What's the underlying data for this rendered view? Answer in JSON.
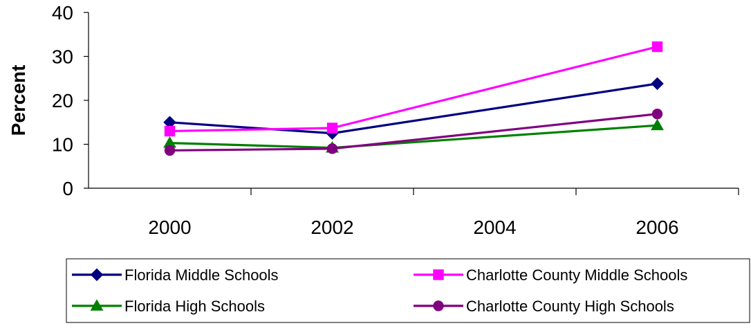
{
  "chart_data": {
    "type": "line",
    "title": "",
    "xlabel": "",
    "ylabel": "Percent",
    "ylim": [
      0,
      40
    ],
    "yticks": [
      0,
      10,
      20,
      30,
      40
    ],
    "xlim": [
      1999,
      2007
    ],
    "x_tick_labels": [
      "2000",
      "2002",
      "2004",
      "2006"
    ],
    "x_tick_values": [
      2000,
      2002,
      2004,
      2006
    ],
    "grid": false,
    "legend_position": "bottom",
    "series": [
      {
        "name": "Florida Middle Schools",
        "color": "#000080",
        "marker": "diamond",
        "x": [
          2000,
          2002,
          2006
        ],
        "values": [
          15.0,
          12.5,
          23.8
        ]
      },
      {
        "name": "Charlotte County Middle Schools",
        "color": "#FF00FF",
        "marker": "square",
        "x": [
          2000,
          2002,
          2006
        ],
        "values": [
          13.0,
          13.7,
          32.2
        ]
      },
      {
        "name": "Florida High Schools",
        "color": "#008000",
        "marker": "triangle",
        "x": [
          2000,
          2002,
          2006
        ],
        "values": [
          10.3,
          9.2,
          14.3
        ]
      },
      {
        "name": "Charlotte County High Schools",
        "color": "#800080",
        "marker": "circle",
        "x": [
          2000,
          2002,
          2006
        ],
        "values": [
          8.6,
          9.0,
          16.9
        ]
      }
    ]
  }
}
